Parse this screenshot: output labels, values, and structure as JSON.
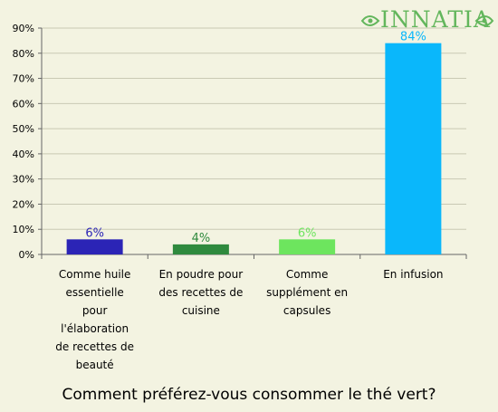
{
  "brand": {
    "name": "INNATIA"
  },
  "chart_data": {
    "type": "bar",
    "title": "Comment préférez-vous consommer le thé vert?",
    "categories": [
      "Comme huile essentielle pour l'élaboration de recettes de beauté",
      "En poudre pour des recettes de cuisine",
      "Comme supplément en capsules",
      "En infusion"
    ],
    "category_lines": [
      [
        "Comme huile",
        "essentielle",
        "pour",
        "l'élaboration",
        "de recettes de",
        "beauté"
      ],
      [
        "En poudre pour",
        "des recettes de",
        "cuisine"
      ],
      [
        "Comme",
        "supplément en",
        "capsules"
      ],
      [
        "En infusion"
      ]
    ],
    "values": [
      6,
      4,
      6,
      84
    ],
    "data_labels": [
      "6%",
      "4%",
      "6%",
      "84%"
    ],
    "colors": [
      "#2b24b6",
      "#2f8a3e",
      "#6de55e",
      "#0ab7fb"
    ],
    "ylim": [
      0,
      90
    ],
    "yticks": [
      0,
      10,
      20,
      30,
      40,
      50,
      60,
      70,
      80,
      90
    ],
    "ytick_labels": [
      "0%",
      "10%",
      "20%",
      "30%",
      "40%",
      "50%",
      "60%",
      "70%",
      "80%",
      "90%"
    ],
    "grid": true,
    "legend": "none"
  }
}
